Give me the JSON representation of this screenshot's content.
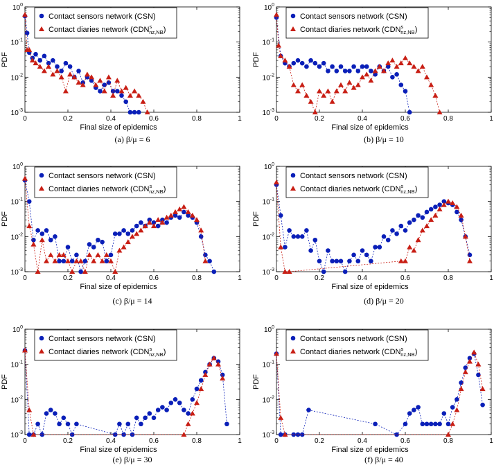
{
  "figure": {
    "legend": {
      "csn": "Contact sensors network (CSN)",
      "cdn_prefix": "Contact diaries network (CDN",
      "cdn_sup": "s",
      "cdn_sub": "nz,NB",
      "cdn_suffix": ")"
    },
    "colors": {
      "csn": "#0a1fb8",
      "cdn": "#c81e14",
      "axis": "#000000"
    }
  },
  "chart_data": [
    {
      "type": "scatter",
      "panel": "(a)",
      "caption": "(a)  β/μ = 6",
      "ylabel": "PDF",
      "xlabel": "Final size of epidemics",
      "xlim": [
        0,
        1
      ],
      "ylim_log10": [
        -3,
        0
      ],
      "x_ticks": [
        "0",
        "0.2",
        "0.4",
        "0.6",
        "0.8",
        "1"
      ],
      "y_ticks": [
        "10-3",
        "10-2",
        "10-1",
        "100"
      ],
      "series": [
        {
          "name": "Contact sensors network (CSN)",
          "marker": "circle",
          "x": [
            0.0,
            0.01,
            0.02,
            0.035,
            0.05,
            0.07,
            0.09,
            0.11,
            0.13,
            0.15,
            0.17,
            0.19,
            0.21,
            0.23,
            0.25,
            0.27,
            0.29,
            0.31,
            0.33,
            0.35,
            0.37,
            0.39,
            0.41,
            0.43,
            0.45,
            0.47,
            0.49,
            0.51,
            0.53
          ],
          "y": [
            0.55,
            0.18,
            0.05,
            0.035,
            0.045,
            0.03,
            0.04,
            0.025,
            0.03,
            0.02,
            0.015,
            0.025,
            0.02,
            0.01,
            0.015,
            0.007,
            0.01,
            0.008,
            0.005,
            0.004,
            0.006,
            0.007,
            0.004,
            0.004,
            0.003,
            0.002,
            0.001,
            0.001,
            0.001
          ]
        },
        {
          "name": "Contact diaries network (CDN^s_nz,NB)",
          "marker": "triangle",
          "x": [
            0.0,
            0.01,
            0.02,
            0.035,
            0.05,
            0.07,
            0.09,
            0.11,
            0.13,
            0.15,
            0.17,
            0.19,
            0.21,
            0.23,
            0.25,
            0.27,
            0.29,
            0.31,
            0.33,
            0.35,
            0.37,
            0.39,
            0.41,
            0.43,
            0.45,
            0.47,
            0.49,
            0.51,
            0.53,
            0.55,
            0.57
          ],
          "y": [
            0.6,
            0.06,
            0.06,
            0.03,
            0.025,
            0.02,
            0.015,
            0.02,
            0.012,
            0.015,
            0.01,
            0.004,
            0.012,
            0.01,
            0.007,
            0.006,
            0.012,
            0.01,
            0.006,
            0.008,
            0.004,
            0.01,
            0.003,
            0.008,
            0.004,
            0.005,
            0.003,
            0.004,
            0.003,
            0.002,
            0.001
          ]
        }
      ]
    },
    {
      "type": "scatter",
      "panel": "(b)",
      "caption": "(b)  β/μ = 10",
      "ylabel": "PDF",
      "xlabel": "Final size of epidemics",
      "xlim": [
        0,
        1
      ],
      "ylim_log10": [
        -3,
        0
      ],
      "x_ticks": [
        "0",
        "0.2",
        "0.4",
        "0.6",
        "0.8",
        "1"
      ],
      "y_ticks": [
        "10-3",
        "10-2",
        "10-1",
        "100"
      ],
      "series": [
        {
          "name": "Contact sensors network (CSN)",
          "marker": "circle",
          "x": [
            0.0,
            0.02,
            0.04,
            0.06,
            0.08,
            0.1,
            0.12,
            0.14,
            0.16,
            0.18,
            0.2,
            0.22,
            0.24,
            0.26,
            0.28,
            0.3,
            0.32,
            0.34,
            0.36,
            0.38,
            0.4,
            0.42,
            0.44,
            0.46,
            0.48,
            0.5,
            0.52,
            0.54,
            0.56,
            0.58,
            0.6,
            0.62
          ],
          "y": [
            0.5,
            0.04,
            0.025,
            0.02,
            0.025,
            0.03,
            0.025,
            0.02,
            0.03,
            0.025,
            0.02,
            0.025,
            0.015,
            0.02,
            0.015,
            0.02,
            0.015,
            0.015,
            0.02,
            0.015,
            0.02,
            0.02,
            0.015,
            0.012,
            0.02,
            0.015,
            0.02,
            0.01,
            0.012,
            0.006,
            0.004,
            0.001
          ]
        },
        {
          "name": "Contact diaries network (CDN^s_nz,NB)",
          "marker": "triangle",
          "x": [
            0.0,
            0.01,
            0.02,
            0.04,
            0.06,
            0.08,
            0.1,
            0.12,
            0.14,
            0.16,
            0.18,
            0.2,
            0.22,
            0.24,
            0.26,
            0.28,
            0.3,
            0.32,
            0.34,
            0.36,
            0.38,
            0.4,
            0.42,
            0.44,
            0.46,
            0.48,
            0.5,
            0.52,
            0.54,
            0.56,
            0.58,
            0.6,
            0.62,
            0.64,
            0.66,
            0.68,
            0.7,
            0.72,
            0.74,
            0.76
          ],
          "y": [
            0.6,
            0.08,
            0.04,
            0.03,
            0.02,
            0.006,
            0.004,
            0.006,
            0.003,
            0.002,
            0.001,
            0.004,
            0.003,
            0.004,
            0.002,
            0.004,
            0.006,
            0.004,
            0.007,
            0.005,
            0.006,
            0.01,
            0.012,
            0.008,
            0.015,
            0.02,
            0.015,
            0.025,
            0.03,
            0.02,
            0.025,
            0.035,
            0.025,
            0.02,
            0.015,
            0.02,
            0.01,
            0.006,
            0.003,
            0.001
          ]
        }
      ]
    },
    {
      "type": "scatter",
      "panel": "(c)",
      "caption": "(c)  β/μ = 14",
      "ylabel": "PDF",
      "xlabel": "Final size of epidemics",
      "xlim": [
        0,
        1
      ],
      "ylim_log10": [
        -3,
        0
      ],
      "x_ticks": [
        "0",
        "0.2",
        "0.4",
        "0.6",
        "0.8",
        "1"
      ],
      "y_ticks": [
        "10-3",
        "10-2",
        "10-1",
        "100"
      ],
      "series": [
        {
          "name": "Contact sensors network (CSN)",
          "marker": "circle",
          "x": [
            0.0,
            0.02,
            0.04,
            0.06,
            0.08,
            0.1,
            0.12,
            0.14,
            0.16,
            0.18,
            0.2,
            0.22,
            0.24,
            0.26,
            0.28,
            0.3,
            0.32,
            0.34,
            0.36,
            0.38,
            0.4,
            0.42,
            0.44,
            0.46,
            0.48,
            0.5,
            0.52,
            0.54,
            0.56,
            0.58,
            0.6,
            0.62,
            0.64,
            0.66,
            0.68,
            0.7,
            0.72,
            0.74,
            0.76,
            0.78,
            0.8,
            0.82,
            0.84,
            0.86,
            0.88
          ],
          "y": [
            0.4,
            0.1,
            0.008,
            0.015,
            0.012,
            0.015,
            0.008,
            0.01,
            0.002,
            0.002,
            0.005,
            0.002,
            0.003,
            0.001,
            0.002,
            0.006,
            0.005,
            0.008,
            0.007,
            0.002,
            0.003,
            0.012,
            0.012,
            0.015,
            0.012,
            0.015,
            0.02,
            0.025,
            0.02,
            0.03,
            0.025,
            0.02,
            0.03,
            0.025,
            0.035,
            0.04,
            0.035,
            0.05,
            0.04,
            0.035,
            0.025,
            0.01,
            0.003,
            0.002,
            0.001
          ]
        },
        {
          "name": "Contact diaries network (CDN^s_nz,NB)",
          "marker": "triangle",
          "x": [
            0.0,
            0.02,
            0.04,
            0.06,
            0.08,
            0.1,
            0.12,
            0.14,
            0.16,
            0.18,
            0.2,
            0.22,
            0.24,
            0.26,
            0.28,
            0.3,
            0.32,
            0.34,
            0.36,
            0.38,
            0.4,
            0.42,
            0.44,
            0.46,
            0.48,
            0.5,
            0.52,
            0.54,
            0.56,
            0.58,
            0.6,
            0.62,
            0.64,
            0.66,
            0.68,
            0.7,
            0.72,
            0.74,
            0.76,
            0.78,
            0.8,
            0.82,
            0.84
          ],
          "y": [
            0.45,
            0.02,
            0.006,
            0.001,
            0.008,
            0.002,
            0.003,
            0.002,
            0.003,
            0.003,
            0.002,
            0.001,
            0.002,
            0.002,
            0.001,
            0.003,
            0.002,
            0.003,
            0.002,
            0.003,
            0.002,
            0.001,
            0.004,
            0.005,
            0.007,
            0.01,
            0.012,
            0.015,
            0.02,
            0.025,
            0.02,
            0.03,
            0.025,
            0.035,
            0.04,
            0.05,
            0.06,
            0.07,
            0.05,
            0.04,
            0.03,
            0.015,
            0.002
          ]
        }
      ]
    },
    {
      "type": "scatter",
      "panel": "(d)",
      "caption": "(d)  β/μ = 20",
      "ylabel": "PDF",
      "xlabel": "Final size of epidemics",
      "xlim": [
        0,
        1
      ],
      "ylim_log10": [
        -3,
        0
      ],
      "x_ticks": [
        "0",
        "0.2",
        "0.4",
        "0.6",
        "0.8",
        "1"
      ],
      "y_ticks": [
        "10-3",
        "10-2",
        "10-1",
        "100"
      ],
      "series": [
        {
          "name": "Contact sensors network (CSN)",
          "marker": "circle",
          "x": [
            0.0,
            0.02,
            0.04,
            0.06,
            0.08,
            0.1,
            0.12,
            0.14,
            0.16,
            0.18,
            0.2,
            0.22,
            0.24,
            0.26,
            0.28,
            0.3,
            0.32,
            0.34,
            0.36,
            0.38,
            0.4,
            0.42,
            0.44,
            0.46,
            0.48,
            0.5,
            0.52,
            0.54,
            0.56,
            0.58,
            0.6,
            0.62,
            0.64,
            0.66,
            0.68,
            0.7,
            0.72,
            0.74,
            0.76,
            0.78,
            0.8,
            0.82,
            0.84,
            0.86,
            0.88,
            0.9
          ],
          "y": [
            0.3,
            0.04,
            0.005,
            0.015,
            0.01,
            0.01,
            0.01,
            0.015,
            0.004,
            0.008,
            0.002,
            0.001,
            0.004,
            0.002,
            0.002,
            0.002,
            0.001,
            0.002,
            0.003,
            0.002,
            0.004,
            0.003,
            0.002,
            0.005,
            0.005,
            0.01,
            0.008,
            0.015,
            0.012,
            0.02,
            0.015,
            0.025,
            0.03,
            0.04,
            0.035,
            0.05,
            0.06,
            0.07,
            0.08,
            0.1,
            0.09,
            0.08,
            0.05,
            0.03,
            0.01,
            0.003
          ]
        },
        {
          "name": "Contact diaries network (CDN^s_nz,NB)",
          "marker": "triangle",
          "x": [
            0.0,
            0.02,
            0.04,
            0.06,
            0.58,
            0.6,
            0.62,
            0.64,
            0.66,
            0.68,
            0.7,
            0.72,
            0.74,
            0.76,
            0.78,
            0.8,
            0.82,
            0.84,
            0.86,
            0.88,
            0.9
          ],
          "y": [
            0.35,
            0.005,
            0.001,
            0.001,
            0.002,
            0.002,
            0.005,
            0.004,
            0.008,
            0.015,
            0.02,
            0.03,
            0.04,
            0.06,
            0.08,
            0.1,
            0.09,
            0.07,
            0.04,
            0.01,
            0.002
          ]
        }
      ]
    },
    {
      "type": "scatter",
      "panel": "(e)",
      "caption": "(e)  β/μ = 30",
      "ylabel": "PDF",
      "xlabel": "Final size of epidemics",
      "xlim": [
        0,
        1
      ],
      "ylim_log10": [
        -3,
        0
      ],
      "x_ticks": [
        "0",
        "0.2",
        "0.4",
        "0.6",
        "0.8",
        "1"
      ],
      "y_ticks": [
        "10-3",
        "10-2",
        "10-1",
        "100"
      ],
      "series": [
        {
          "name": "Contact sensors network (CSN)",
          "marker": "circle",
          "x": [
            0.0,
            0.02,
            0.04,
            0.06,
            0.08,
            0.1,
            0.12,
            0.14,
            0.16,
            0.18,
            0.2,
            0.22,
            0.24,
            0.42,
            0.44,
            0.46,
            0.48,
            0.5,
            0.52,
            0.54,
            0.56,
            0.58,
            0.6,
            0.62,
            0.64,
            0.66,
            0.68,
            0.7,
            0.72,
            0.74,
            0.76,
            0.78,
            0.8,
            0.82,
            0.84,
            0.86,
            0.88,
            0.9,
            0.92,
            0.94
          ],
          "y": [
            0.25,
            0.001,
            0.001,
            0.002,
            0.001,
            0.004,
            0.005,
            0.004,
            0.002,
            0.003,
            0.002,
            0.001,
            0.002,
            0.001,
            0.002,
            0.001,
            0.002,
            0.001,
            0.003,
            0.002,
            0.003,
            0.004,
            0.003,
            0.005,
            0.006,
            0.005,
            0.008,
            0.01,
            0.008,
            0.005,
            0.004,
            0.01,
            0.02,
            0.035,
            0.06,
            0.1,
            0.15,
            0.12,
            0.05,
            0.002
          ]
        },
        {
          "name": "Contact diaries network (CDN^s_nz,NB)",
          "marker": "triangle",
          "x": [
            0.0,
            0.02,
            0.04,
            0.74,
            0.76,
            0.78,
            0.8,
            0.82,
            0.84,
            0.86,
            0.88,
            0.9,
            0.92
          ],
          "y": [
            0.25,
            0.005,
            0.001,
            0.001,
            0.002,
            0.004,
            0.008,
            0.02,
            0.05,
            0.1,
            0.15,
            0.1,
            0.04
          ]
        }
      ]
    },
    {
      "type": "scatter",
      "panel": "(f)",
      "caption": "(f)  β/μ = 40",
      "ylabel": "PDF",
      "xlabel": "Final size of epidemics",
      "xlim": [
        0,
        1
      ],
      "ylim_log10": [
        -3,
        0
      ],
      "x_ticks": [
        "0",
        "0.2",
        "0.4",
        "0.6",
        "0.8",
        "1"
      ],
      "y_ticks": [
        "10-3",
        "10-2",
        "10-1",
        "100"
      ],
      "series": [
        {
          "name": "Contact sensors network (CSN)",
          "marker": "circle",
          "x": [
            0.0,
            0.02,
            0.04,
            0.08,
            0.1,
            0.12,
            0.15,
            0.46,
            0.56,
            0.6,
            0.62,
            0.64,
            0.66,
            0.68,
            0.7,
            0.72,
            0.74,
            0.76,
            0.78,
            0.8,
            0.82,
            0.84,
            0.86,
            0.88,
            0.9,
            0.92,
            0.94,
            0.96
          ],
          "y": [
            0.2,
            0.001,
            0.001,
            0.001,
            0.001,
            0.001,
            0.005,
            0.002,
            0.001,
            0.002,
            0.004,
            0.005,
            0.006,
            0.002,
            0.002,
            0.002,
            0.002,
            0.002,
            0.004,
            0.002,
            0.006,
            0.01,
            0.03,
            0.08,
            0.15,
            0.2,
            0.05,
            0.007
          ]
        },
        {
          "name": "Contact diaries network (CDN^s_nz,NB)",
          "marker": "triangle",
          "x": [
            0.0,
            0.02,
            0.04,
            0.8,
            0.82,
            0.84,
            0.86,
            0.88,
            0.9,
            0.92,
            0.94,
            0.96
          ],
          "y": [
            0.2,
            0.003,
            0.001,
            0.001,
            0.002,
            0.005,
            0.02,
            0.06,
            0.12,
            0.22,
            0.1,
            0.02
          ]
        }
      ]
    }
  ]
}
